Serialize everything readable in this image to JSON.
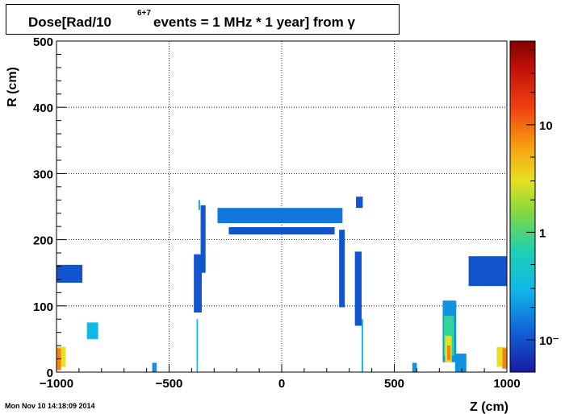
{
  "chart_data": {
    "type": "heatmap",
    "title": {
      "main": "Dose[Rad/10",
      "superscript": "6+7",
      "rest": " events = 1 MHz * 1 year] from γ"
    },
    "xlabel": "Z (cm)",
    "ylabel": "R (cm)",
    "xlim": [
      -1000,
      1000
    ],
    "ylim": [
      0,
      500
    ],
    "x_ticks": [
      -1000,
      -500,
      0,
      500,
      1000
    ],
    "x_tick_labels": [
      "−1000",
      "−500",
      "0",
      "500",
      "1000"
    ],
    "y_ticks": [
      0,
      100,
      200,
      300,
      400,
      500
    ],
    "y_tick_labels": [
      "0",
      "100",
      "200",
      "300",
      "400",
      "500"
    ],
    "grid": true,
    "colorbar": {
      "scale": "log",
      "labels": [
        {
          "value": 10,
          "text": "10"
        },
        {
          "value": 1,
          "text": "1"
        },
        {
          "value": 0.1,
          "text": "10⁻"
        }
      ]
    },
    "regions": [
      {
        "z": [
          -1000,
          -885
        ],
        "r": [
          135,
          162
        ],
        "level": 0.1
      },
      {
        "z": [
          -865,
          -815
        ],
        "r": [
          50,
          75
        ],
        "level": 0.3
      },
      {
        "z": [
          -1000,
          -960
        ],
        "r": [
          8,
          38
        ],
        "level": 3
      },
      {
        "z": [
          -1000,
          -980
        ],
        "r": [
          3,
          36
        ],
        "level": 8
      },
      {
        "z": [
          -390,
          -355
        ],
        "r": [
          90,
          178
        ],
        "level": 0.1
      },
      {
        "z": [
          -360,
          -338
        ],
        "r": [
          150,
          252
        ],
        "level": 0.1
      },
      {
        "z": [
          -285,
          270
        ],
        "r": [
          225,
          248
        ],
        "level": 0.15
      },
      {
        "z": [
          -235,
          235
        ],
        "r": [
          208,
          219
        ],
        "level": 0.1
      },
      {
        "z": [
          -370,
          -362
        ],
        "r": [
          245,
          260
        ],
        "level": 0.3
      },
      {
        "z": [
          255,
          280
        ],
        "r": [
          98,
          215
        ],
        "level": 0.1
      },
      {
        "z": [
          325,
          355
        ],
        "r": [
          70,
          182
        ],
        "level": 0.1
      },
      {
        "z": [
          330,
          360
        ],
        "r": [
          248,
          265
        ],
        "level": 0.1
      },
      {
        "z": [
          355,
          362
        ],
        "r": [
          0,
          80
        ],
        "level": 0.3
      },
      {
        "z": [
          -378,
          -372
        ],
        "r": [
          0,
          80
        ],
        "level": 0.3
      },
      {
        "z": [
          -575,
          -555
        ],
        "r": [
          0,
          14
        ],
        "level": 0.2
      },
      {
        "z": [
          580,
          600
        ],
        "r": [
          0,
          14
        ],
        "level": 0.2
      },
      {
        "z": [
          715,
          775
        ],
        "r": [
          15,
          108
        ],
        "level": 0.2
      },
      {
        "z": [
          720,
          765
        ],
        "r": [
          25,
          85
        ],
        "level": 0.8
      },
      {
        "z": [
          725,
          755
        ],
        "r": [
          15,
          55
        ],
        "level": 3
      },
      {
        "z": [
          735,
          750
        ],
        "r": [
          18,
          40
        ],
        "level": 8
      },
      {
        "z": [
          770,
          820
        ],
        "r": [
          0,
          28
        ],
        "level": 0.2
      },
      {
        "z": [
          830,
          1000
        ],
        "r": [
          130,
          175
        ],
        "level": 0.1
      },
      {
        "z": [
          955,
          1000
        ],
        "r": [
          8,
          38
        ],
        "level": 3
      },
      {
        "z": [
          980,
          1000
        ],
        "r": [
          5,
          36
        ],
        "level": 8
      }
    ]
  },
  "timestamp": "Mon Nov 10 14:18:09 2014"
}
